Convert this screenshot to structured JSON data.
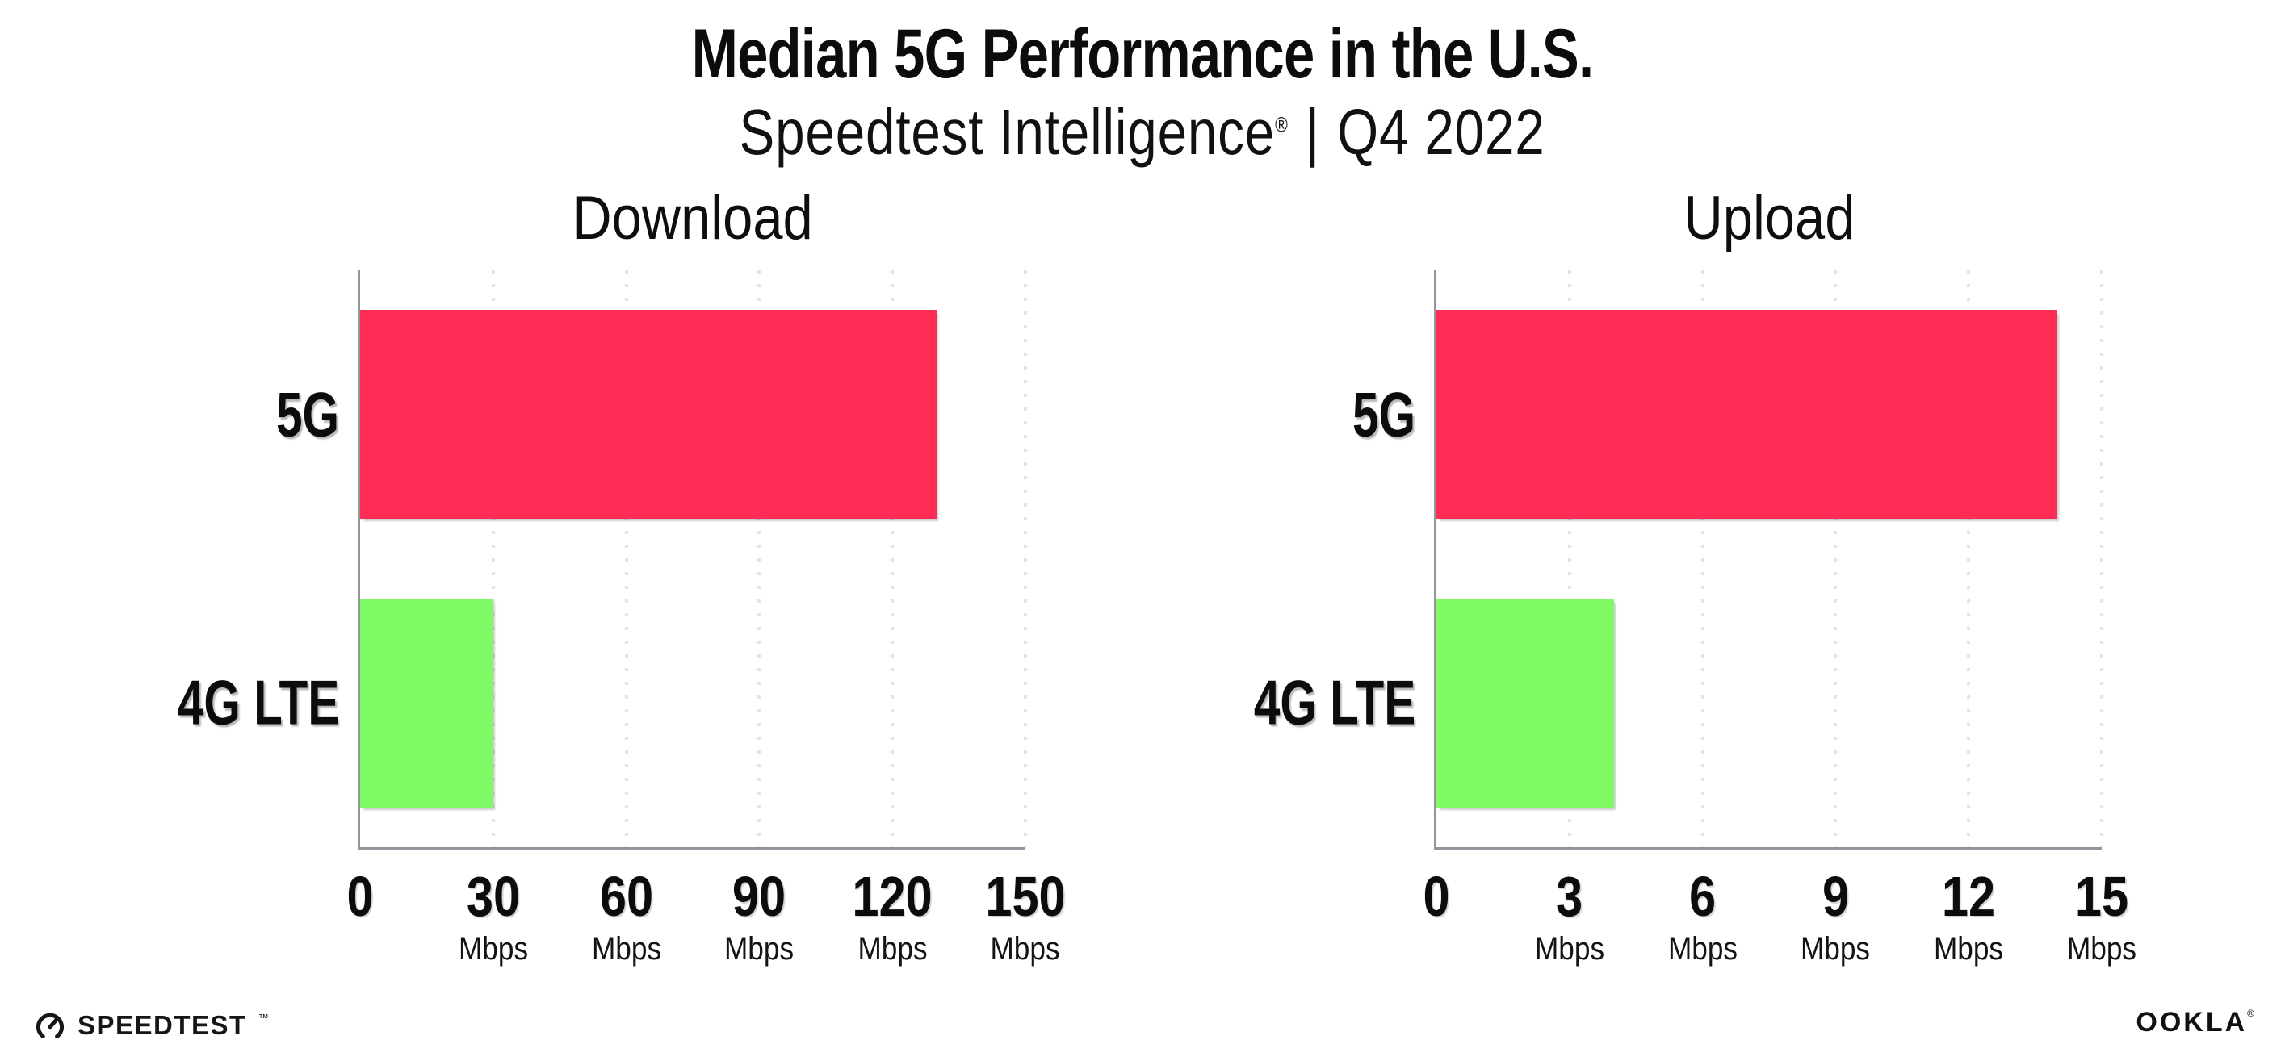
{
  "header": {
    "title": "Median 5G Performance in the U.S.",
    "subtitle_brand": "Speedtest Intelligence",
    "subtitle_reg": "®",
    "subtitle_separator": "|",
    "subtitle_period": "Q4 2022"
  },
  "footer": {
    "speedtest_label": "SPEEDTEST",
    "speedtest_tm": "™",
    "speedtest_icon": "gauge-icon",
    "ookla_label": "OOKLA",
    "ookla_reg": "®"
  },
  "colors": {
    "bar_5g": "#FF2D55",
    "bar_4g_lte": "#7EFB64",
    "axis": "#94949C",
    "gridline": "#E1E3EE",
    "text": "#0C0C0C"
  },
  "chart_data": [
    {
      "type": "bar",
      "orientation": "horizontal",
      "title": "Download",
      "categories": [
        "5G",
        "4G LTE"
      ],
      "values": [
        130,
        30
      ],
      "unit": "Mbps",
      "xlim": [
        0,
        150
      ],
      "xticks": [
        0,
        30,
        60,
        90,
        120,
        150
      ],
      "bar_colors": [
        "#FF2D55",
        "#7EFB64"
      ],
      "grid": "dotted-vertical",
      "legend": "none"
    },
    {
      "type": "bar",
      "orientation": "horizontal",
      "title": "Upload",
      "categories": [
        "5G",
        "4G LTE"
      ],
      "values": [
        14,
        4
      ],
      "unit": "Mbps",
      "xlim": [
        0,
        15
      ],
      "xticks": [
        0,
        3,
        6,
        9,
        12,
        15
      ],
      "bar_colors": [
        "#FF2D55",
        "#7EFB64"
      ],
      "grid": "dotted-vertical",
      "legend": "none"
    }
  ]
}
